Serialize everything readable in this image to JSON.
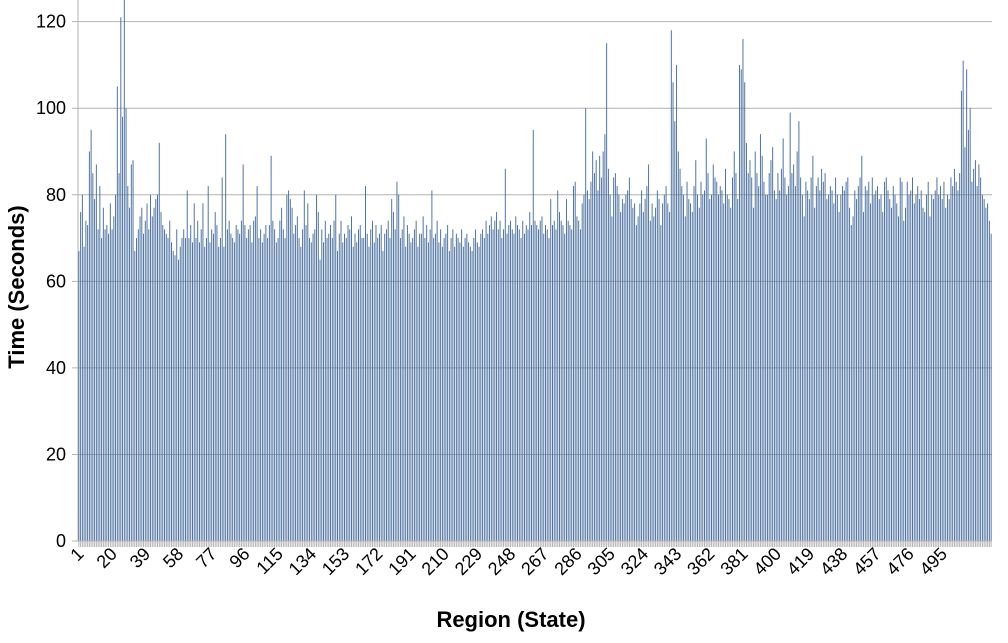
{
  "chart_data": {
    "type": "bar",
    "title": "",
    "xlabel": "Region (State)",
    "ylabel": "Time (Seconds)",
    "ylim": [
      0,
      125
    ],
    "yticks": [
      0,
      20,
      40,
      60,
      80,
      100,
      120
    ],
    "xtick_labels": [
      1,
      20,
      39,
      58,
      77,
      96,
      115,
      134,
      153,
      172,
      191,
      210,
      229,
      248,
      267,
      286,
      305,
      324,
      343,
      362,
      381,
      400,
      419,
      438,
      457,
      476,
      495
    ],
    "grid": "horizontal",
    "legend": "none",
    "bar_color": "#4a6f9e",
    "x_start": 1,
    "values": [
      67,
      76,
      80,
      68,
      74,
      73,
      90,
      95,
      85,
      79,
      87,
      72,
      82,
      70,
      77,
      72,
      73,
      71,
      78,
      72,
      75,
      80,
      105,
      85,
      121,
      98,
      125,
      100,
      82,
      77,
      87,
      88,
      67,
      70,
      72,
      75,
      77,
      71,
      74,
      78,
      72,
      80,
      75,
      77,
      79,
      80,
      92,
      76,
      73,
      72,
      71,
      70,
      74,
      69,
      67,
      66,
      72,
      65,
      68,
      70,
      72,
      70,
      81,
      70,
      73,
      69,
      78,
      70,
      74,
      69,
      72,
      78,
      68,
      70,
      82,
      69,
      72,
      71,
      76,
      73,
      68,
      70,
      84,
      68,
      94,
      72,
      74,
      71,
      70,
      69,
      73,
      72,
      71,
      74,
      87,
      73,
      70,
      72,
      73,
      69,
      74,
      75,
      82,
      70,
      72,
      69,
      71,
      73,
      70,
      73,
      89,
      74,
      72,
      69,
      70,
      74,
      77,
      72,
      70,
      80,
      81,
      79,
      77,
      71,
      73,
      75,
      70,
      68,
      72,
      81,
      73,
      78,
      70,
      69,
      71,
      72,
      80,
      76,
      65,
      72,
      69,
      74,
      70,
      71,
      73,
      70,
      74,
      80,
      67,
      71,
      74,
      69,
      71,
      70,
      73,
      72,
      75,
      68,
      71,
      69,
      72,
      73,
      70,
      70,
      82,
      71,
      68,
      72,
      74,
      69,
      73,
      70,
      71,
      73,
      67,
      71,
      72,
      74,
      70,
      79,
      76,
      72,
      83,
      80,
      70,
      72,
      75,
      68,
      73,
      71,
      69,
      70,
      72,
      74,
      68,
      71,
      71,
      75,
      70,
      73,
      69,
      72,
      81,
      70,
      71,
      74,
      69,
      72,
      68,
      70,
      71,
      73,
      67,
      70,
      72,
      68,
      71,
      70,
      69,
      72,
      68,
      70,
      71,
      69,
      68,
      67,
      70,
      72,
      69,
      68,
      71,
      72,
      70,
      74,
      71,
      73,
      75,
      72,
      74,
      76,
      72,
      74,
      70,
      72,
      86,
      71,
      73,
      74,
      72,
      71,
      75,
      73,
      72,
      70,
      74,
      71,
      73,
      72,
      76,
      73,
      95,
      74,
      73,
      72,
      74,
      75,
      71,
      73,
      72,
      70,
      79,
      73,
      74,
      72,
      81,
      76,
      74,
      73,
      71,
      79,
      74,
      73,
      72,
      82,
      83,
      75,
      74,
      72,
      78,
      80,
      100,
      81,
      79,
      83,
      90,
      85,
      88,
      81,
      89,
      84,
      90,
      94,
      115,
      86,
      80,
      75,
      84,
      85,
      82,
      80,
      76,
      79,
      78,
      80,
      81,
      84,
      79,
      77,
      78,
      73,
      75,
      78,
      81,
      76,
      79,
      82,
      87,
      74,
      78,
      75,
      77,
      81,
      79,
      73,
      78,
      80,
      82,
      78,
      76,
      118,
      106,
      97,
      110,
      90,
      86,
      82,
      80,
      75,
      83,
      79,
      78,
      76,
      82,
      88,
      80,
      77,
      83,
      80,
      81,
      93,
      85,
      79,
      80,
      87,
      84,
      83,
      80,
      82,
      81,
      78,
      86,
      80,
      79,
      77,
      84,
      90,
      85,
      79,
      110,
      109,
      116,
      106,
      92,
      85,
      88,
      84,
      77,
      90,
      85,
      82,
      94,
      89,
      83,
      80,
      80,
      85,
      88,
      91,
      81,
      79,
      85,
      81,
      86,
      93,
      84,
      80,
      82,
      99,
      85,
      87,
      82,
      90,
      97,
      84,
      80,
      75,
      83,
      81,
      79,
      84,
      89,
      77,
      82,
      84,
      81,
      86,
      83,
      85,
      79,
      80,
      82,
      81,
      78,
      84,
      80,
      76,
      80,
      82,
      81,
      83,
      84,
      77,
      73,
      75,
      81,
      79,
      82,
      84,
      89,
      76,
      82,
      81,
      83,
      78,
      84,
      80,
      81,
      82,
      79,
      80,
      76,
      83,
      84,
      81,
      79,
      77,
      82,
      80,
      78,
      75,
      84,
      83,
      74,
      77,
      83,
      80,
      81,
      84,
      78,
      80,
      82,
      79,
      81,
      77,
      76,
      80,
      83,
      75,
      80,
      79,
      81,
      84,
      80,
      82,
      79,
      83,
      77,
      80,
      79,
      84,
      82,
      86,
      83,
      81,
      85,
      104,
      111,
      91,
      109,
      95,
      100,
      83,
      86,
      88,
      82,
      87,
      84,
      80,
      79,
      77,
      78,
      74,
      71
    ]
  }
}
